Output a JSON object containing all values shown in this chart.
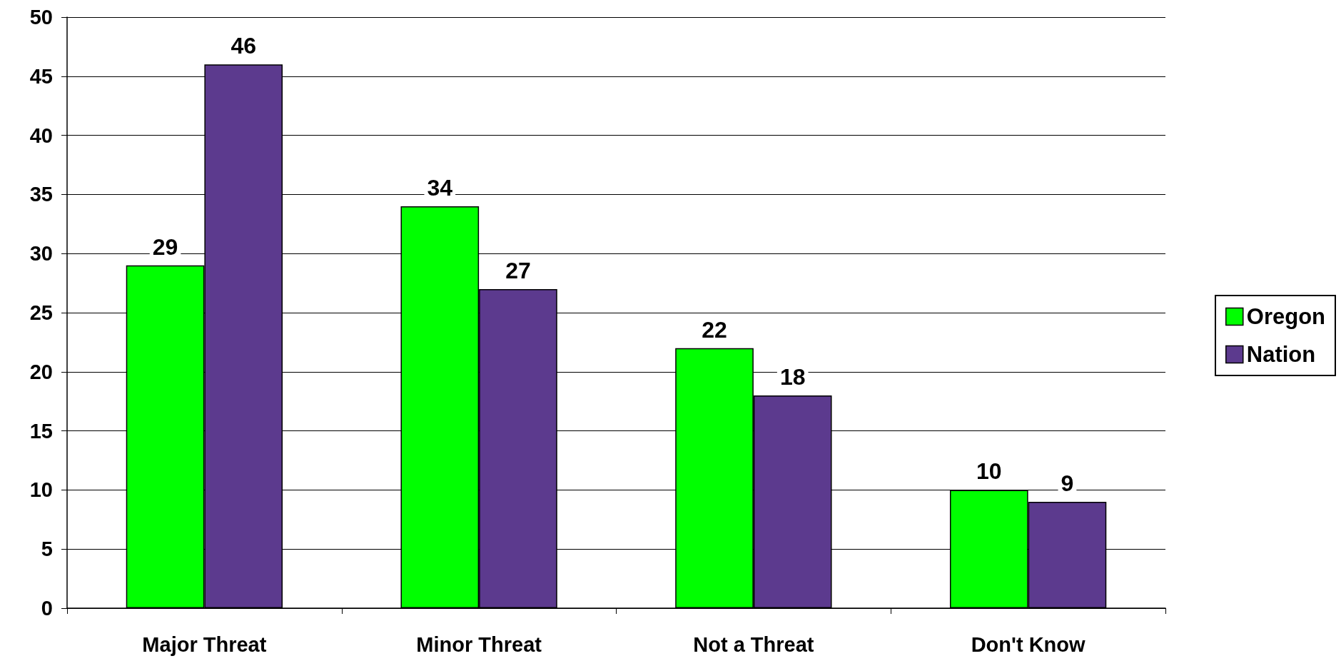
{
  "chart_data": {
    "type": "bar",
    "categories": [
      "Major Threat",
      "Minor Threat",
      "Not a Threat",
      "Don't Know"
    ],
    "series": [
      {
        "name": "Oregon",
        "color": "#00ff00",
        "values": [
          29,
          34,
          22,
          10
        ]
      },
      {
        "name": "Nation",
        "color": "#5c3a8e",
        "values": [
          46,
          27,
          18,
          9
        ]
      }
    ],
    "ylim": [
      0,
      50
    ],
    "yticks": [
      0,
      5,
      10,
      15,
      20,
      25,
      30,
      35,
      40,
      45,
      50
    ],
    "grid": "y",
    "legend": "right",
    "data_labels": true
  }
}
